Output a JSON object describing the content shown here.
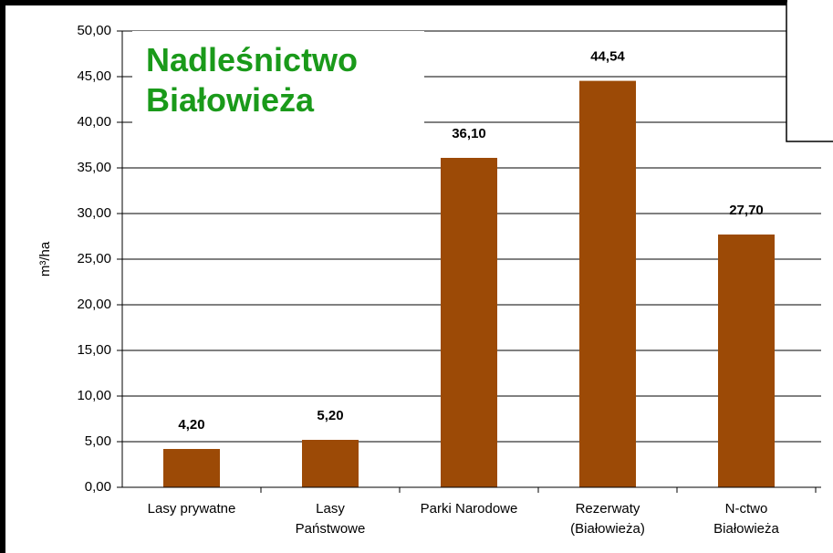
{
  "chart_data": {
    "type": "bar",
    "title": "Nadleśnictwo\nBiałowieża",
    "y_label": "m³/ha",
    "categories": [
      "Lasy prywatne",
      "Lasy\nPaństwowe",
      "Parki Narodowe",
      "Rezerwaty\n(Białowieża)",
      "N-ctwo\nBiałowieża"
    ],
    "values": [
      4.2,
      5.2,
      36.1,
      44.54,
      27.7
    ],
    "value_labels": [
      "4,20",
      "5,20",
      "36,10",
      "44,54",
      "27,70"
    ],
    "color": "#9c4a06",
    "ylim": [
      0,
      50
    ],
    "yticks": [
      {
        "value": 0,
        "label": "0,00"
      },
      {
        "value": 5,
        "label": "5,00"
      },
      {
        "value": 10,
        "label": "10,00"
      },
      {
        "value": 15,
        "label": "15,00"
      },
      {
        "value": 20,
        "label": "20,00"
      },
      {
        "value": 25,
        "label": "25,00"
      },
      {
        "value": 30,
        "label": "30,00"
      },
      {
        "value": 35,
        "label": "35,00"
      },
      {
        "value": 40,
        "label": "40,00"
      },
      {
        "value": 45,
        "label": "45,00"
      },
      {
        "value": 50,
        "label": "50,00"
      }
    ],
    "grid": true
  }
}
